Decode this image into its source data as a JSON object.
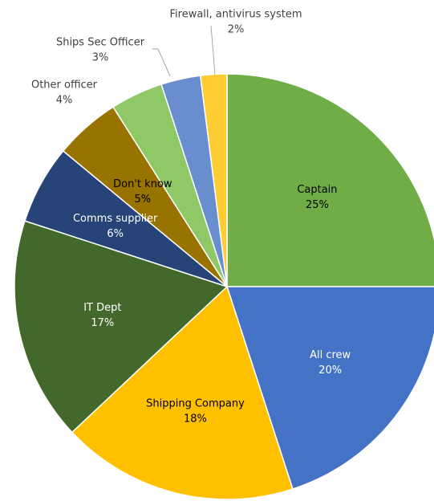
{
  "chart_data": {
    "type": "pie",
    "categories": [
      "Captain",
      "All crew",
      "Shipping Company",
      "IT Dept",
      "Comms supplier",
      "Don't know",
      "Other officer",
      "Ships Sec Officer",
      "Firewall, antivirus system"
    ],
    "values": [
      25,
      20,
      18,
      17,
      6,
      5,
      4,
      3,
      2
    ],
    "value_labels": [
      "25%",
      "20%",
      "18%",
      "17%",
      "6%",
      "5%",
      "4%",
      "3%",
      "2%"
    ],
    "colors": [
      "#70ad47",
      "#4472c4",
      "#ffc000",
      "#43682b",
      "#264478",
      "#997300",
      "#8fc866",
      "#698ed0",
      "#ffcd33"
    ]
  }
}
